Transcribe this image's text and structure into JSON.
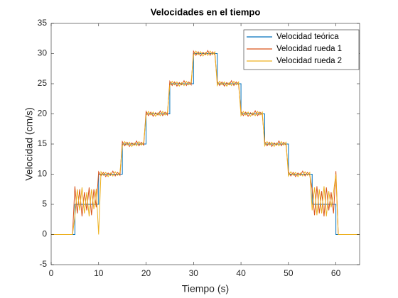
{
  "chart_data": {
    "type": "line",
    "title": "Velocidades en el tiempo",
    "x_label": "Tiempo (s)",
    "y_label": "Velocidad (cm/s)",
    "xlim": [
      0,
      65
    ],
    "xticks": [
      0,
      10,
      20,
      30,
      40,
      50,
      60
    ],
    "ylim": [
      -5,
      35
    ],
    "yticks": [
      -5,
      0,
      5,
      10,
      15,
      20,
      25,
      30,
      35
    ],
    "legend": "northeast",
    "series": [
      {
        "name": "Velocidad teórica",
        "color": "#0072BD",
        "x": [
          0,
          5,
          5,
          10,
          10,
          15,
          15,
          20,
          20,
          25,
          25,
          30,
          30,
          35,
          35,
          40,
          40,
          45,
          45,
          50,
          50,
          55,
          55,
          60,
          60,
          65
        ],
        "values": [
          0,
          0,
          5,
          5,
          10,
          10,
          15,
          15,
          20,
          20,
          25,
          25,
          30,
          30,
          25,
          25,
          20,
          20,
          15,
          15,
          10,
          10,
          5,
          5,
          0,
          0
        ]
      },
      {
        "name": "Velocidad rueda 1",
        "color": "#D95319",
        "x": [
          0,
          0.5,
          1,
          1.5,
          2,
          2.5,
          3,
          3.5,
          4,
          4.5,
          5,
          5.5,
          6,
          6.5,
          7,
          7.5,
          8,
          8.5,
          9,
          9.5,
          10,
          10.5,
          11,
          11.5,
          12,
          12.5,
          13,
          13.5,
          14,
          14.5,
          15,
          15.5,
          16,
          16.5,
          17,
          17.5,
          18,
          18.5,
          19,
          19.5,
          20,
          20.5,
          21,
          21.5,
          22,
          22.5,
          23,
          23.5,
          24,
          24.5,
          25,
          25.5,
          26,
          26.5,
          27,
          27.5,
          28,
          28.5,
          29,
          29.5,
          30,
          30.5,
          31,
          31.5,
          32,
          32.5,
          33,
          33.5,
          34,
          34.5,
          35,
          35.5,
          36,
          36.5,
          37,
          37.5,
          38,
          38.5,
          39,
          39.5,
          40,
          40.5,
          41,
          41.5,
          42,
          42.5,
          43,
          43.5,
          44,
          44.5,
          45,
          45.5,
          46,
          46.5,
          47,
          47.5,
          48,
          48.5,
          49,
          49.5,
          50,
          50.5,
          51,
          51.5,
          52,
          52.5,
          53,
          53.5,
          54,
          54.5,
          55,
          55.5,
          56,
          56.5,
          57,
          57.5,
          58,
          58.5,
          59,
          59.5,
          60,
          60.5,
          61,
          61.5,
          62,
          62.5,
          63,
          63.5,
          64,
          64.5,
          65
        ],
        "values": [
          0,
          0,
          0,
          0,
          0,
          0,
          0,
          0,
          0,
          0,
          8,
          3.5,
          7.5,
          3,
          7,
          4,
          7.8,
          3.2,
          7.5,
          4.5,
          10.4,
          9.7,
          10.3,
          9.6,
          10.2,
          9.8,
          10.5,
          9.7,
          10.3,
          9.8,
          15.4,
          14.7,
          15.3,
          14.6,
          15.2,
          14.8,
          15.5,
          14.7,
          15.3,
          14.8,
          20.4,
          19.7,
          20.3,
          19.6,
          20.2,
          19.8,
          20.5,
          19.7,
          20.3,
          19.8,
          25.4,
          24.7,
          25.3,
          24.6,
          25.2,
          24.8,
          25.5,
          24.7,
          25.3,
          24.8,
          30.4,
          29.7,
          30.3,
          29.6,
          30.2,
          29.8,
          30.5,
          29.7,
          30.3,
          29.8,
          25.4,
          24.7,
          25.3,
          24.6,
          25.2,
          24.8,
          25.5,
          24.7,
          25.3,
          24.8,
          20.4,
          19.7,
          20.3,
          19.6,
          20.2,
          19.8,
          20.5,
          19.7,
          20.3,
          19.8,
          15.4,
          14.7,
          15.3,
          14.6,
          15.2,
          14.8,
          15.5,
          14.7,
          15.3,
          14.8,
          10.4,
          9.7,
          10.3,
          9.6,
          10.2,
          9.8,
          10.5,
          9.7,
          10.3,
          9.8,
          7.5,
          3.2,
          8,
          3.5,
          7.2,
          3,
          7.8,
          4,
          7,
          3.5,
          10.5,
          0,
          0,
          0,
          0,
          0,
          0,
          0,
          0,
          0,
          0
        ]
      },
      {
        "name": "Velocidad rueda 2",
        "color": "#EDB120",
        "x": [
          0,
          0.5,
          1,
          1.5,
          2,
          2.5,
          3,
          3.5,
          4,
          4.5,
          5,
          5.5,
          6,
          6.5,
          7,
          7.5,
          8,
          8.5,
          9,
          9.5,
          10,
          10.5,
          11,
          11.5,
          12,
          12.5,
          13,
          13.5,
          14,
          14.5,
          15,
          15.5,
          16,
          16.5,
          17,
          17.5,
          18,
          18.5,
          19,
          19.5,
          20,
          20.5,
          21,
          21.5,
          22,
          22.5,
          23,
          23.5,
          24,
          24.5,
          25,
          25.5,
          26,
          26.5,
          27,
          27.5,
          28,
          28.5,
          29,
          29.5,
          30,
          30.5,
          31,
          31.5,
          32,
          32.5,
          33,
          33.5,
          34,
          34.5,
          35,
          35.5,
          36,
          36.5,
          37,
          37.5,
          38,
          38.5,
          39,
          39.5,
          40,
          40.5,
          41,
          41.5,
          42,
          42.5,
          43,
          43.5,
          44,
          44.5,
          45,
          45.5,
          46,
          46.5,
          47,
          47.5,
          48,
          48.5,
          49,
          49.5,
          50,
          50.5,
          51,
          51.5,
          52,
          52.5,
          53,
          53.5,
          54,
          54.5,
          55,
          55.5,
          56,
          56.5,
          57,
          57.5,
          58,
          58.5,
          59,
          59.5,
          60,
          60.5,
          61,
          61.5,
          62,
          62.5,
          63,
          63.5,
          64,
          64.5,
          65
        ],
        "values": [
          0,
          0,
          0,
          0,
          0,
          0,
          0,
          0,
          0,
          0,
          3,
          7.5,
          4,
          7.8,
          3.5,
          7,
          3,
          7.5,
          4.2,
          7.6,
          0,
          10.4,
          9.8,
          10.3,
          9.6,
          10.2,
          9.7,
          10.4,
          9.8,
          10.3,
          14.7,
          15.4,
          14.8,
          15.3,
          14.6,
          15.2,
          14.7,
          15.4,
          14.8,
          15.3,
          19.7,
          20.4,
          19.8,
          20.3,
          19.6,
          20.2,
          19.7,
          20.4,
          19.8,
          20.3,
          24.7,
          25.4,
          24.8,
          25.3,
          24.6,
          25.2,
          24.7,
          25.4,
          24.8,
          25.3,
          29.7,
          30.4,
          29.8,
          30.3,
          29.6,
          30.2,
          29.7,
          30.4,
          29.8,
          30.3,
          24.7,
          25.4,
          24.8,
          25.3,
          24.6,
          25.2,
          24.7,
          25.4,
          24.8,
          25.3,
          19.7,
          20.4,
          19.8,
          20.3,
          19.6,
          20.2,
          19.7,
          20.4,
          19.8,
          20.3,
          14.7,
          15.4,
          14.8,
          15.3,
          14.6,
          15.2,
          14.7,
          15.4,
          14.8,
          15.3,
          9.7,
          10.4,
          9.8,
          10.3,
          9.6,
          10.2,
          9.7,
          10.4,
          9.8,
          10.3,
          4,
          7.8,
          3.2,
          7.5,
          3.5,
          8,
          3,
          7.2,
          4.5,
          7,
          10,
          0,
          0,
          0,
          0,
          0,
          0,
          0,
          0,
          0,
          0
        ]
      }
    ]
  }
}
